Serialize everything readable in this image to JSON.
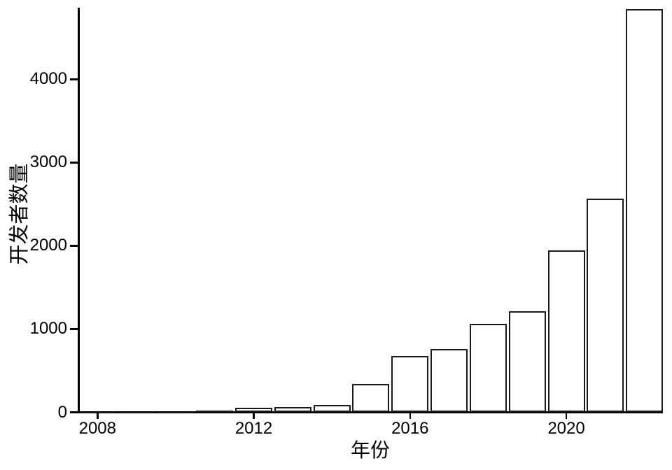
{
  "chart_data": {
    "type": "bar",
    "title": "",
    "xlabel": "年份",
    "ylabel": "开发者数量",
    "categories": [
      2008,
      2009,
      2010,
      2011,
      2012,
      2013,
      2014,
      2015,
      2016,
      2017,
      2018,
      2019,
      2020,
      2021,
      2022
    ],
    "values": [
      2,
      4,
      8,
      18,
      55,
      65,
      85,
      340,
      680,
      760,
      1065,
      1215,
      1945,
      2570,
      4845
    ],
    "x_tick_labels": [
      "2008",
      "2012",
      "2016",
      "2020"
    ],
    "x_tick_years": [
      2008,
      2012,
      2016,
      2020
    ],
    "y_tick_labels": [
      "0",
      "1000",
      "2000",
      "3000",
      "4000"
    ],
    "y_tick_values": [
      0,
      1000,
      2000,
      3000,
      4000
    ],
    "xlim": [
      2007.5,
      2022.5
    ],
    "ylim": [
      0,
      4860
    ],
    "grid": false,
    "legend_position": "none",
    "bar_fill": "#ffffff",
    "bar_border_color": "#1a1a1a",
    "axis_color": "#000000",
    "text_color": "#000000"
  }
}
